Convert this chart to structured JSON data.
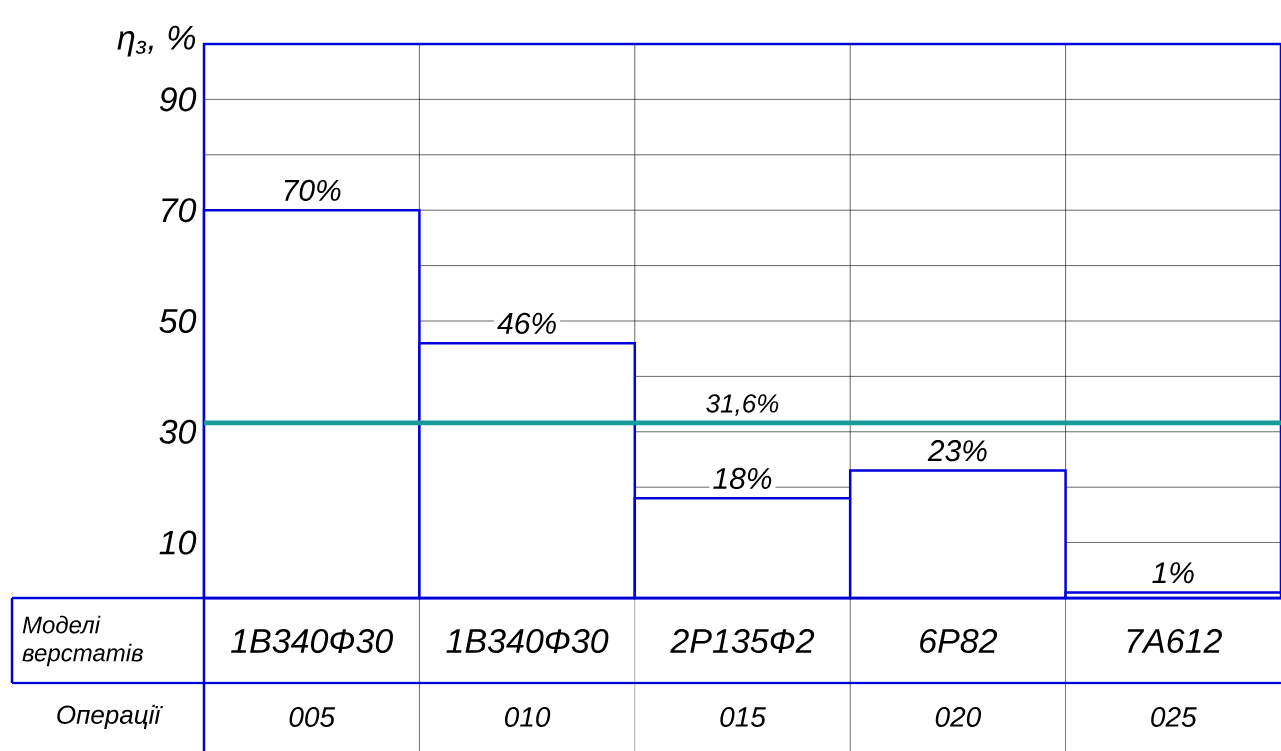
{
  "chart_data": {
    "type": "bar",
    "ylabel": "η$_{з}$, %",
    "xlabel": "Моделі верстатів",
    "categories": [
      "1В340Ф30",
      "1В340Ф30",
      "2Р135Ф2",
      "6Р82",
      "7А612"
    ],
    "values": [
      70,
      46,
      18,
      23,
      1
    ],
    "value_labels": [
      "70%",
      "46%",
      "18%",
      "23%",
      "1%"
    ],
    "color": "#0000dd",
    "ylim": [
      0,
      100
    ],
    "yticks": [
      10,
      {
        "value": 20,
        "label": null
      },
      30,
      {
        "value": 40,
        "label": null
      },
      50,
      {
        "value": 60,
        "label": null
      },
      70,
      {
        "value": 80,
        "label": null
      },
      90
    ],
    "grid": true,
    "ref_lines": [
      {
        "axis": "y",
        "value": 31.6,
        "label": "31,6%",
        "color": "#1a9a9a"
      }
    ],
    "annotations": [
      "Операції",
      "005",
      "010",
      "015",
      "020",
      "025"
    ]
  }
}
